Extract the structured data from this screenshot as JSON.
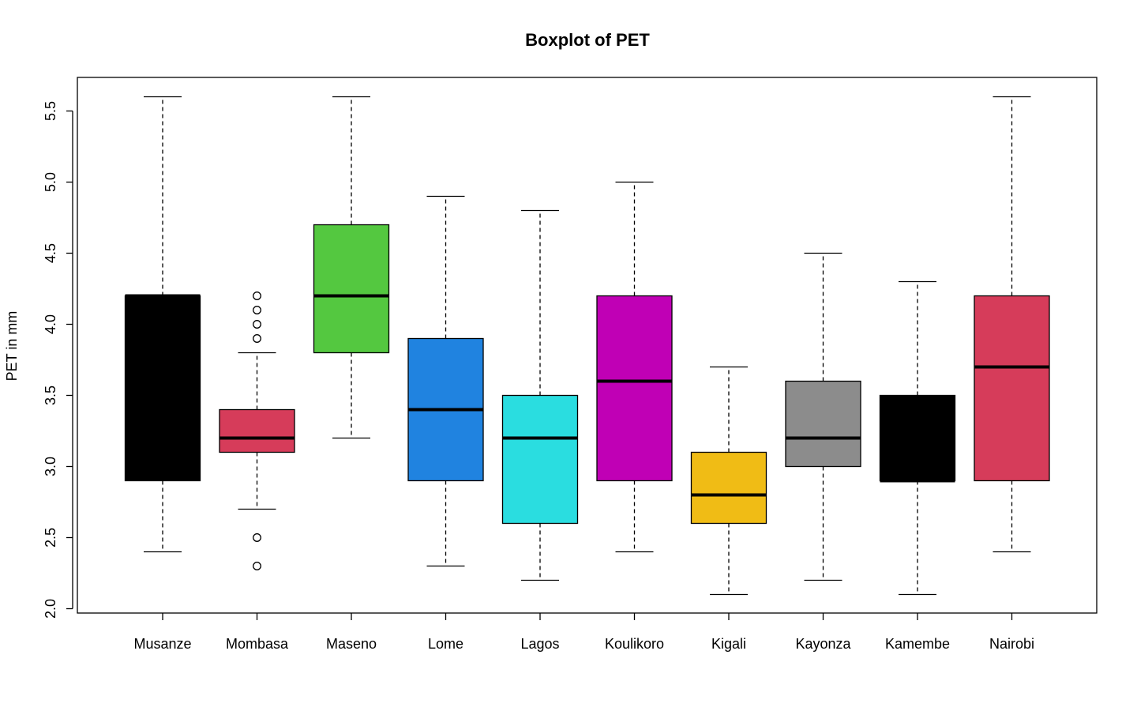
{
  "chart_data": {
    "type": "boxplot",
    "title": "Boxplot of PET",
    "xlabel": "",
    "ylabel": "PET in mm",
    "ylim": [
      2.0,
      5.6
    ],
    "yticks": [
      2.0,
      2.5,
      3.0,
      3.5,
      4.0,
      4.5,
      5.0,
      5.5
    ],
    "ytick_labels": [
      "2.0",
      "2.5",
      "3.0",
      "3.5",
      "4.0",
      "4.5",
      "5.0",
      "5.5"
    ],
    "grid": false,
    "categories": [
      "Musanze",
      "Mombasa",
      "Maseno",
      "Lome",
      "Lagos",
      "Koulikoro",
      "Kigali",
      "Kayonza",
      "Kamembe",
      "Nairobi"
    ],
    "boxes": [
      {
        "category": "Musanze",
        "color": "#000000",
        "whisker_low": 2.4,
        "q1": 2.9,
        "median": 4.2,
        "q3": 4.2,
        "whisker_high": 5.6,
        "outliers": []
      },
      {
        "category": "Mombasa",
        "color": "#D63C5A",
        "whisker_low": 2.7,
        "q1": 3.1,
        "median": 3.2,
        "q3": 3.4,
        "whisker_high": 3.8,
        "outliers": [
          2.3,
          2.5,
          3.9,
          4.0,
          4.1,
          4.2
        ]
      },
      {
        "category": "Maseno",
        "color": "#54C840",
        "whisker_low": 3.2,
        "q1": 3.8,
        "median": 4.2,
        "q3": 4.7,
        "whisker_high": 5.6,
        "outliers": []
      },
      {
        "category": "Lome",
        "color": "#2083E0",
        "whisker_low": 2.3,
        "q1": 2.9,
        "median": 3.4,
        "q3": 3.9,
        "whisker_high": 4.9,
        "outliers": []
      },
      {
        "category": "Lagos",
        "color": "#2ADDE0",
        "whisker_low": 2.2,
        "q1": 2.6,
        "median": 3.2,
        "q3": 3.5,
        "whisker_high": 4.8,
        "outliers": []
      },
      {
        "category": "Koulikoro",
        "color": "#C000B5",
        "whisker_low": 2.4,
        "q1": 2.9,
        "median": 3.6,
        "q3": 4.2,
        "whisker_high": 5.0,
        "outliers": []
      },
      {
        "category": "Kigali",
        "color": "#F0BC15",
        "whisker_low": 2.1,
        "q1": 2.6,
        "median": 2.8,
        "q3": 3.1,
        "whisker_high": 3.7,
        "outliers": []
      },
      {
        "category": "Kayonza",
        "color": "#8C8C8C",
        "whisker_low": 2.2,
        "q1": 3.0,
        "median": 3.2,
        "q3": 3.6,
        "whisker_high": 4.5,
        "outliers": []
      },
      {
        "category": "Kamembe",
        "color": "#000000",
        "whisker_low": 2.1,
        "q1": 2.9,
        "median": 2.9,
        "q3": 3.5,
        "whisker_high": 4.3,
        "outliers": []
      },
      {
        "category": "Nairobi",
        "color": "#D63C5A",
        "whisker_low": 2.4,
        "q1": 2.9,
        "median": 3.7,
        "q3": 4.2,
        "whisker_high": 5.6,
        "outliers": []
      }
    ]
  }
}
